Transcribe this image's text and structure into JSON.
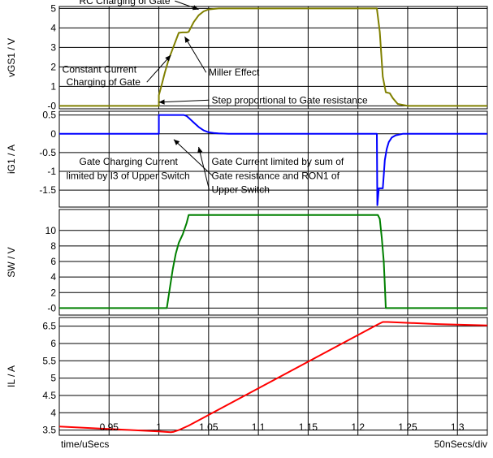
{
  "chart_data": {
    "type": "line",
    "x_axis": {
      "label": "time/uSecs",
      "scale_text": "50nSecs/div",
      "range": [
        0.9,
        1.33
      ],
      "ticks": [
        0.95,
        1,
        1.05,
        1.1,
        1.15,
        1.2,
        1.25,
        1.3
      ],
      "tick_labels": [
        "0.95",
        "1",
        "1.05",
        "1.1",
        "1.15",
        "1.2",
        "1.25",
        "1.3"
      ]
    },
    "grid": true,
    "panels": [
      {
        "ylabel": "vGS1 / V",
        "ylim": [
          -0.15,
          5.1
        ],
        "yticks": [
          0,
          1,
          2,
          3,
          4,
          5
        ],
        "ytick_labels": [
          "-0",
          "1",
          "2",
          "3",
          "4",
          "5"
        ],
        "series": [
          {
            "color": "#808000",
            "x": [
              0.9,
              1.0,
              1.0,
              1.003,
              1.006,
              1.01,
              1.02,
              1.024,
              1.028,
              1.03,
              1.035,
              1.04,
              1.045,
              1.05,
              1.06,
              1.07,
              1.08,
              1.1,
              1.219,
              1.222,
              1.225,
              1.228,
              1.232,
              1.235,
              1.24,
              1.25,
              1.33
            ],
            "y": [
              0,
              0,
              0.55,
              1.1,
              1.7,
              2.4,
              3.75,
              3.77,
              3.77,
              3.8,
              4.3,
              4.65,
              4.85,
              4.95,
              5.0,
              5.0,
              5.0,
              5.0,
              5.0,
              3.8,
              1.5,
              0.7,
              0.65,
              0.4,
              0.1,
              0.0,
              0.0
            ]
          }
        ],
        "annotations": [
          {
            "text": "RC Charging of Gate",
            "x": 0.92,
            "y": 5.22,
            "arrow_to": [
              1.04,
              4.95
            ]
          },
          {
            "text": "Constant Current",
            "x": 0.903,
            "y": 1.7
          },
          {
            "text": "Charging of Gate",
            "x": 0.907,
            "y": 1.05,
            "arrow_to": [
              1.012,
              2.6
            ]
          },
          {
            "text": "Miller Effect",
            "x": 1.05,
            "y": 1.55,
            "arrow_to": [
              1.026,
              3.55
            ]
          }
        ]
      },
      {
        "ylabel": "iG1 / A",
        "ylim": [
          -1.95,
          0.6
        ],
        "yticks": [
          0.5,
          0,
          -0.5,
          -1,
          -1.5
        ],
        "ytick_labels": [
          "0.5",
          "0",
          "-0.5",
          "-1",
          "-1.5"
        ],
        "series": [
          {
            "color": "#0000ff",
            "x": [
              0.9,
              1.0,
              1.0,
              1.025,
              1.028,
              1.031,
              1.035,
              1.04,
              1.045,
              1.05,
              1.055,
              1.06,
              1.07,
              1.219,
              1.2195,
              1.221,
              1.225,
              1.226,
              1.227,
              1.229,
              1.231,
              1.234,
              1.238,
              1.245,
              1.33
            ],
            "y": [
              0,
              0,
              0.5,
              0.5,
              0.47,
              0.4,
              0.3,
              0.18,
              0.09,
              0.04,
              0.02,
              0.01,
              0.0,
              0.0,
              -1.9,
              -1.45,
              -1.45,
              -1.1,
              -0.7,
              -0.4,
              -0.22,
              -0.1,
              -0.04,
              0.0,
              0.0
            ]
          }
        ],
        "annotations": [
          {
            "text": "Step proportional to Gate resistance",
            "x": 1.053,
            "y": 0.81,
            "arrow_to": [
              1.0,
              0.84
            ]
          },
          {
            "text": "Gate Charging Current",
            "x": 0.92,
            "y": -0.83
          },
          {
            "text": "limited by I3 of Upper Switch",
            "x": 0.907,
            "y": -1.2,
            "arrow_to": [
              1.015,
              -0.15
            ]
          },
          {
            "text": "Gate Current limited by sum of",
            "x": 1.053,
            "y": -0.83
          },
          {
            "text": "Gate resistance and RON1 of",
            "x": 1.053,
            "y": -1.2
          },
          {
            "text": "Upper Switch",
            "x": 1.053,
            "y": -1.57,
            "arrow_to": [
              1.04,
              -0.35
            ]
          }
        ]
      },
      {
        "ylabel": "SW / V",
        "ylim": [
          -0.9,
          12.7
        ],
        "yticks": [
          0,
          2,
          4,
          6,
          8,
          10
        ],
        "ytick_labels": [
          "-0",
          "2",
          "4",
          "6",
          "8",
          "10"
        ],
        "series": [
          {
            "color": "#008000",
            "x": [
              0.9,
              1.008,
              1.011,
              1.014,
              1.017,
              1.02,
              1.024,
              1.028,
              1.03,
              1.22,
              1.222,
              1.224,
              1.226,
              1.227,
              1.228,
              1.33
            ],
            "y": [
              0,
              0,
              2.5,
              5.0,
              7.0,
              8.4,
              9.5,
              11.0,
              12.0,
              12.0,
              11.5,
              9.0,
              6.0,
              3.0,
              0.0,
              0.0
            ]
          }
        ],
        "annotations": []
      },
      {
        "ylabel": "IL / A",
        "ylim": [
          3.35,
          6.75
        ],
        "yticks": [
          3.5,
          4,
          4.5,
          5,
          5.5,
          6,
          6.5
        ],
        "ytick_labels": [
          "3.5",
          "4",
          "4.5",
          "5",
          "5.5",
          "6",
          "6.5"
        ],
        "series": [
          {
            "color": "#ff0000",
            "x": [
              0.9,
              0.95,
              1.0,
              1.012,
              1.015,
              1.02,
              1.03,
              1.22,
              1.225,
              1.23,
              1.28,
              1.33
            ],
            "y": [
              3.6,
              3.53,
              3.46,
              3.44,
              3.45,
              3.5,
              3.63,
              6.55,
              6.62,
              6.62,
              6.56,
              6.52
            ]
          }
        ],
        "annotations": []
      }
    ]
  }
}
